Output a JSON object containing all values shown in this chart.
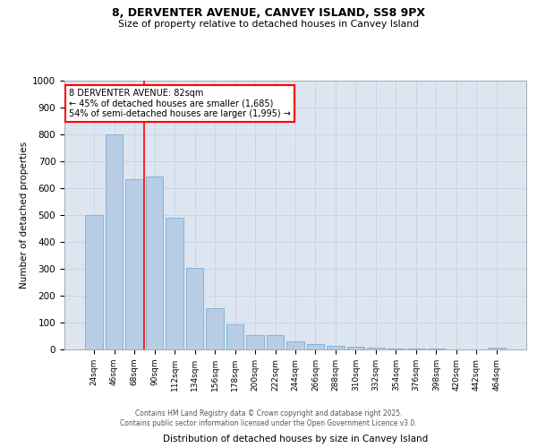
{
  "title1": "8, DERVENTER AVENUE, CANVEY ISLAND, SS8 9PX",
  "title2": "Size of property relative to detached houses in Canvey Island",
  "xlabel": "Distribution of detached houses by size in Canvey Island",
  "ylabel": "Number of detached properties",
  "categories": [
    "24sqm",
    "46sqm",
    "68sqm",
    "90sqm",
    "112sqm",
    "134sqm",
    "156sqm",
    "178sqm",
    "200sqm",
    "222sqm",
    "244sqm",
    "266sqm",
    "288sqm",
    "310sqm",
    "332sqm",
    "354sqm",
    "376sqm",
    "398sqm",
    "420sqm",
    "442sqm",
    "464sqm"
  ],
  "values": [
    500,
    800,
    635,
    645,
    490,
    305,
    155,
    95,
    55,
    55,
    30,
    20,
    15,
    10,
    8,
    5,
    2,
    2,
    0,
    0,
    8
  ],
  "bar_color": "#b8cce4",
  "bar_edge_color": "#7bafd4",
  "grid_color": "#c8d4e8",
  "background_color": "#dde5f0",
  "vline_color": "red",
  "vline_x": 2.5,
  "annotation_text": "8 DERVENTER AVENUE: 82sqm\n← 45% of detached houses are smaller (1,685)\n54% of semi-detached houses are larger (1,995) →",
  "annotation_box_color": "white",
  "annotation_box_edge_color": "red",
  "ylim": [
    0,
    1000
  ],
  "yticks": [
    0,
    100,
    200,
    300,
    400,
    500,
    600,
    700,
    800,
    900,
    1000
  ],
  "footer1": "Contains HM Land Registry data © Crown copyright and database right 2025.",
  "footer2": "Contains public sector information licensed under the Open Government Licence v3.0."
}
